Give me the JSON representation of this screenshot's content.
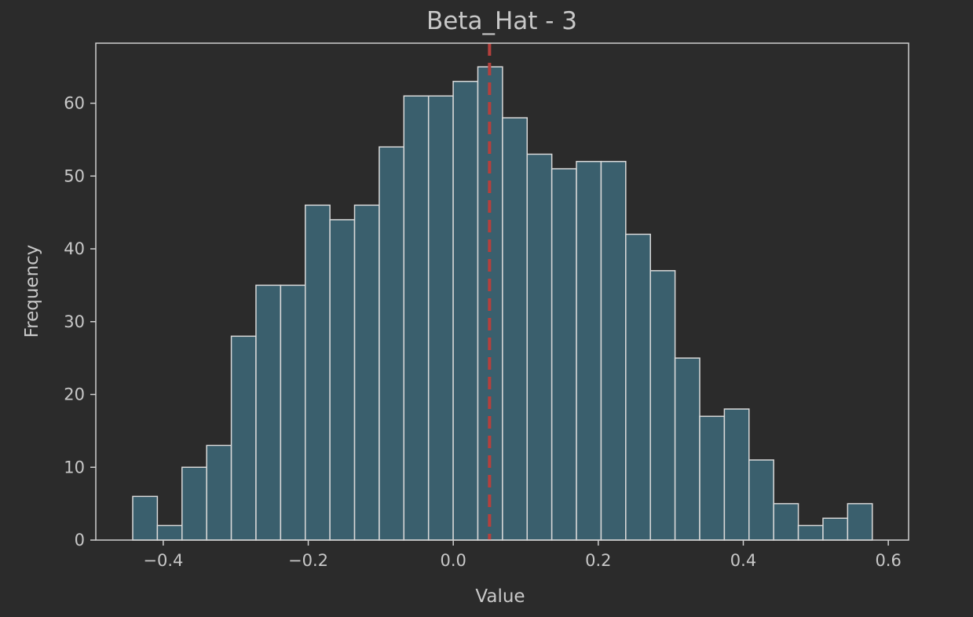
{
  "chart_data": {
    "type": "bar",
    "title": "Beta_Hat - 3",
    "xlabel": "Value",
    "ylabel": "Frequency",
    "xlim": [
      -0.493,
      0.628
    ],
    "ylim": [
      0,
      68.25
    ],
    "xticks": [
      -0.4,
      -0.2,
      0.0,
      0.2,
      0.4,
      0.6
    ],
    "xtick_labels": [
      "−0.4",
      "−0.2",
      "0.0",
      "0.2",
      "0.4",
      "0.6"
    ],
    "yticks": [
      0,
      10,
      20,
      30,
      40,
      50,
      60
    ],
    "ytick_labels": [
      "0",
      "10",
      "20",
      "30",
      "40",
      "50",
      "60"
    ],
    "bin_edges": [
      -0.4421,
      -0.4081,
      -0.3741,
      -0.3401,
      -0.3061,
      -0.2721,
      -0.2381,
      -0.2041,
      -0.1701,
      -0.1361,
      -0.1021,
      -0.0681,
      -0.0341,
      -0.0001,
      0.0339,
      0.0679,
      0.1019,
      0.1359,
      0.1699,
      0.2039,
      0.2379,
      0.2719,
      0.3059,
      0.3399,
      0.3739,
      0.4079,
      0.4419,
      0.4759,
      0.5099,
      0.5439,
      0.5779
    ],
    "values": [
      6,
      2,
      10,
      13,
      28,
      35,
      35,
      46,
      44,
      46,
      54,
      61,
      61,
      63,
      65,
      58,
      53,
      51,
      52,
      52,
      42,
      37,
      25,
      17,
      18,
      11,
      5,
      2,
      3,
      5
    ],
    "reference_line": {
      "x": 0.05,
      "style": "dashed"
    },
    "grid": false,
    "colors": {
      "background": "#2b2b2b",
      "bar_fill": "#3a5f6d",
      "bar_edge": "#d9d9d9",
      "reference_line": "#b5403d",
      "text": "#c8c8c8"
    }
  }
}
